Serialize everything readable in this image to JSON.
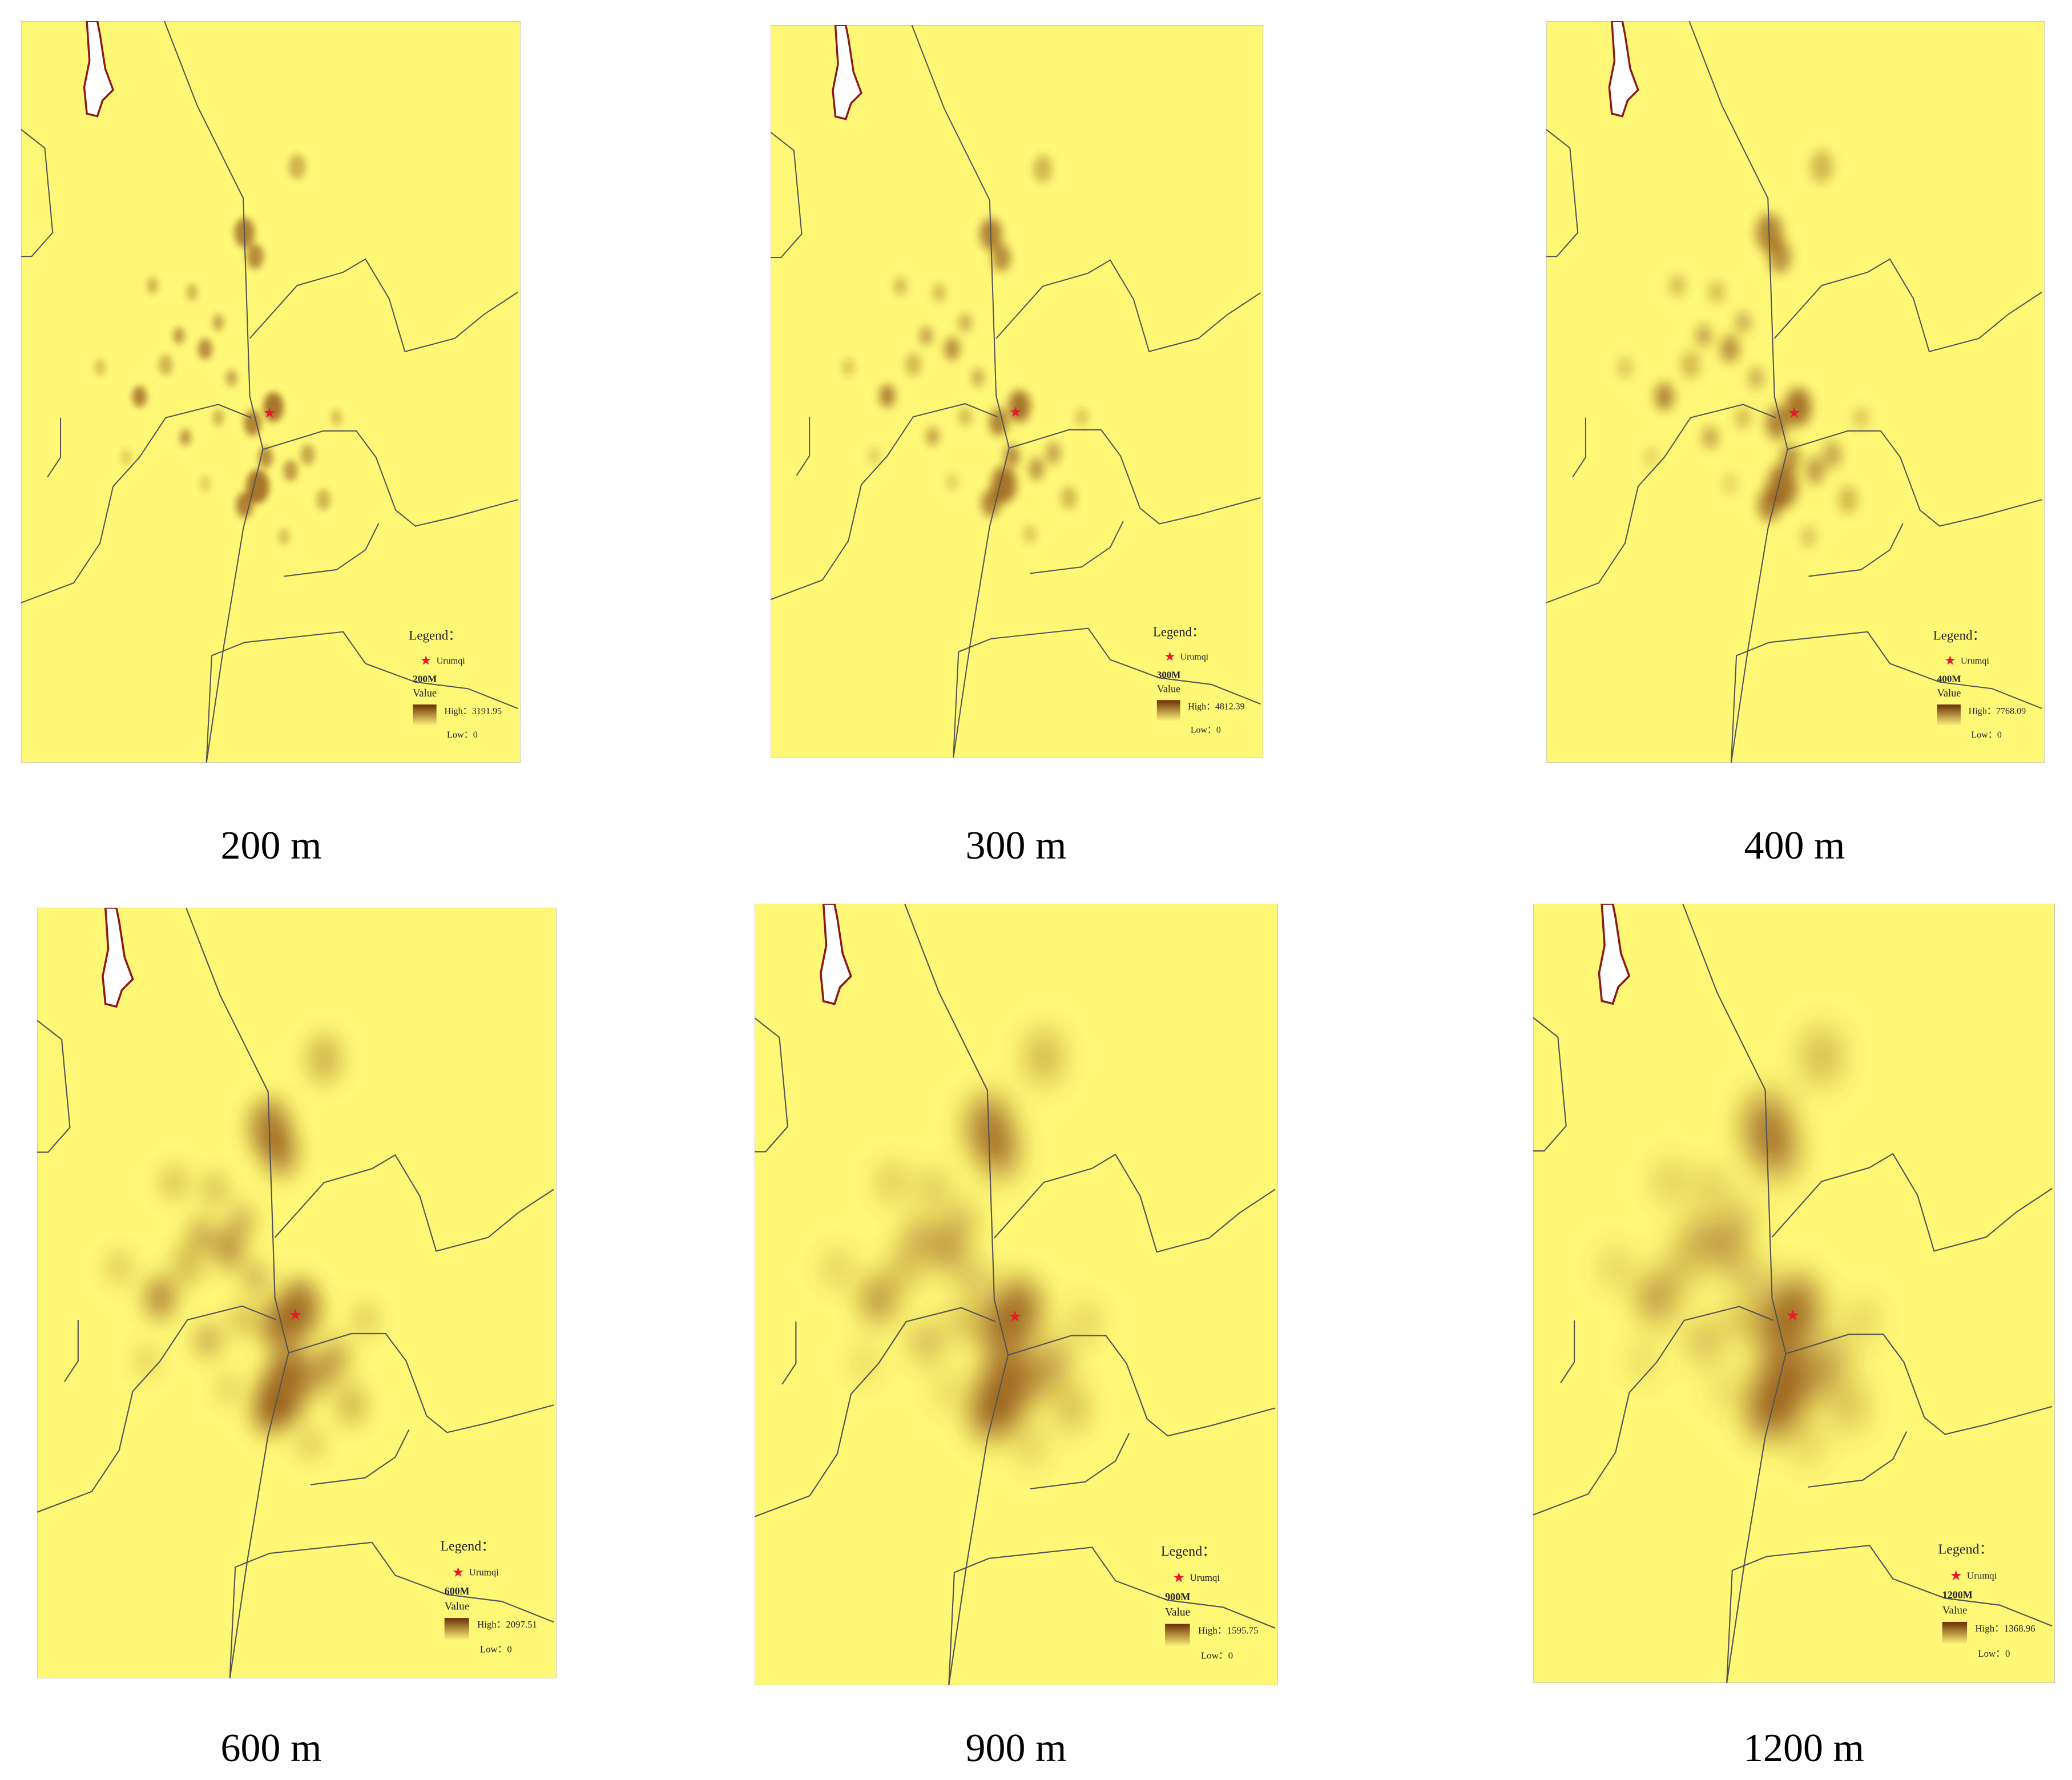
{
  "panels": [
    {
      "caption": "200 m",
      "legend": {
        "title": "Legend：",
        "place": "Urumqi",
        "bandwidth": "200M",
        "field": "Value",
        "high": "High：3191.95",
        "low": "Low：0"
      }
    },
    {
      "caption": "300 m",
      "legend": {
        "title": "Legend：",
        "place": "Urumqi",
        "bandwidth": "300M",
        "field": "Value",
        "high": "High：4812.39",
        "low": "Low：0"
      }
    },
    {
      "caption": "400 m",
      "legend": {
        "title": "Legend：",
        "place": "Urumqi",
        "bandwidth": "400M",
        "field": "Value",
        "high": "High：7768.09",
        "low": "Low：0"
      }
    },
    {
      "caption": "600 m",
      "legend": {
        "title": "Legend：",
        "place": "Urumqi",
        "bandwidth": "600M",
        "field": "Value",
        "high": "High：2097.51",
        "low": "Low：0"
      }
    },
    {
      "caption": "900 m",
      "legend": {
        "title": "Legend：",
        "place": "Urumqi",
        "bandwidth": "900M",
        "field": "Value",
        "high": "High：1595.75",
        "low": "Low：0"
      }
    },
    {
      "caption": "1200 m",
      "legend": {
        "title": "Legend：",
        "place": "Urumqi",
        "bandwidth": "1200M",
        "field": "Value",
        "high": "High：1368.96",
        "low": "Low：0"
      }
    }
  ]
}
